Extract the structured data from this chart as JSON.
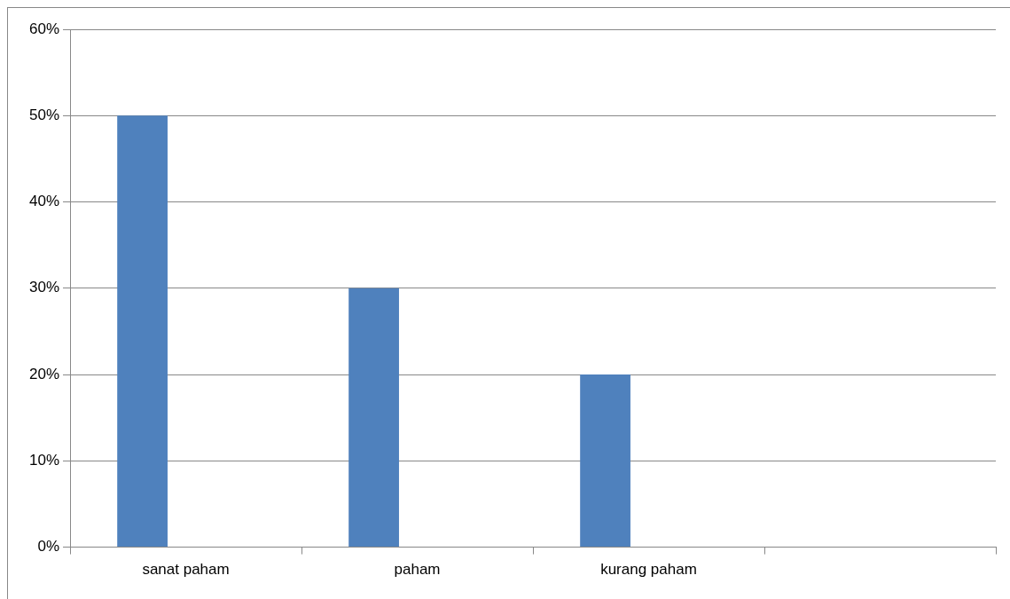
{
  "chart_data": {
    "type": "bar",
    "categories": [
      "sanat paham",
      "paham",
      "kurang paham",
      null
    ],
    "values": [
      50,
      30,
      20,
      null
    ],
    "color": "#4f81bd",
    "ylim": [
      0,
      60
    ],
    "yticks": [
      {
        "value": 0,
        "label": "0%"
      },
      {
        "value": 10,
        "label": "10%"
      },
      {
        "value": 20,
        "label": "20%"
      },
      {
        "value": 30,
        "label": "30%"
      },
      {
        "value": 40,
        "label": "40%"
      },
      {
        "value": 50,
        "label": "50%"
      },
      {
        "value": 60,
        "label": "60%"
      }
    ],
    "grid": "y",
    "legend": false
  }
}
